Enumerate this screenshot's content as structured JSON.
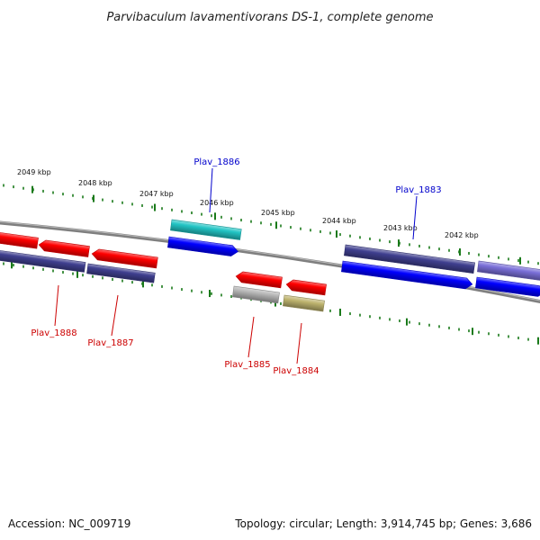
{
  "title": "Parvibaculum lavamentivorans DS-1, complete genome",
  "footer": {
    "accession": "Accession: NC_009719",
    "summary": "Topology: circular; Length: 3,914,745 bp; Genes: 3,686"
  },
  "colors": {
    "backbone": "#7f7f7f",
    "tick": "#1a7a1a",
    "label_forward": "#0000cc",
    "label_reverse": "#cc0000"
  },
  "ruler_labels": [
    "2049 kbp",
    "2048 kbp",
    "2047 kbp",
    "2046 kbp",
    "2045 kbp",
    "2044 kbp",
    "2043 kbp",
    "2042 kbp"
  ],
  "gene_labels": [
    {
      "name": "Plav_1886",
      "strand": "forward"
    },
    {
      "name": "Plav_1883",
      "strand": "forward"
    },
    {
      "name": "Plav_1888",
      "strand": "reverse"
    },
    {
      "name": "Plav_1887",
      "strand": "reverse"
    },
    {
      "name": "Plav_1885",
      "strand": "reverse"
    },
    {
      "name": "Plav_1884",
      "strand": "reverse"
    }
  ],
  "features": [
    {
      "name": "red-gene-arrow",
      "color": "#ff0000"
    },
    {
      "name": "red-gene-arrow",
      "color": "#ff0000"
    },
    {
      "name": "red-gene-arrow",
      "color": "#ff0000"
    },
    {
      "name": "cog-navy-block",
      "color": "#3f3f8f"
    },
    {
      "name": "cog-navy-block",
      "color": "#3f3f8f"
    },
    {
      "name": "cyan-cog-block",
      "color": "#22c4c4"
    },
    {
      "name": "blue-gene-arrow",
      "color": "#0000ff"
    },
    {
      "name": "red-gene-arrow",
      "color": "#ff0000"
    },
    {
      "name": "red-gene-arrow",
      "color": "#ff0000"
    },
    {
      "name": "gray-cog-block",
      "color": "#b5b5b5"
    },
    {
      "name": "olive-cog-block",
      "color": "#bdb36e"
    },
    {
      "name": "cog-navy-block",
      "color": "#3f3f8f"
    },
    {
      "name": "lavender-cog-block",
      "color": "#7a6fd8"
    },
    {
      "name": "blue-gene-arrow",
      "color": "#0000ff"
    },
    {
      "name": "blue-gene-arrow",
      "color": "#0000ff"
    }
  ]
}
